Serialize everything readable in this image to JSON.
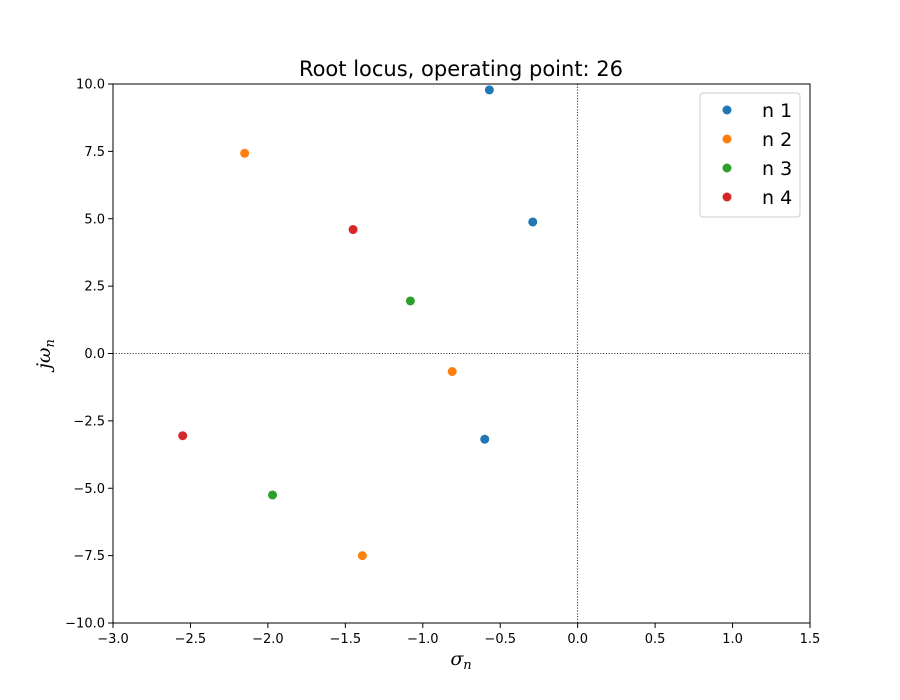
{
  "chart_data": {
    "type": "scatter",
    "title": "Root locus, operating point: 26",
    "xlabel": "σ",
    "xlabel_sub": "n",
    "ylabel": "jω",
    "ylabel_sub": "n",
    "xlim": [
      -3.0,
      1.5
    ],
    "ylim": [
      -10.0,
      10.0
    ],
    "xticks": [
      -3.0,
      -2.5,
      -2.0,
      -1.5,
      -1.0,
      -0.5,
      0.0,
      0.5,
      1.0,
      1.5
    ],
    "xtick_labels": [
      "−3.0",
      "−2.5",
      "−2.0",
      "−1.5",
      "−1.0",
      "−0.5",
      "0.0",
      "0.5",
      "1.0",
      "1.5"
    ],
    "yticks": [
      -10.0,
      -7.5,
      -5.0,
      -2.5,
      0.0,
      2.5,
      5.0,
      7.5,
      10.0
    ],
    "ytick_labels": [
      "−10.0",
      "−7.5",
      "−5.0",
      "−2.5",
      "0.0",
      "2.5",
      "5.0",
      "7.5",
      "10.0"
    ],
    "grid": false,
    "reference_lines": {
      "x": 0.0,
      "y": 0.0,
      "style": "dotted"
    },
    "legend_position": "top-right",
    "series": [
      {
        "name": "n 1",
        "color": "#1f77b4",
        "points": [
          [
            -0.57,
            9.78
          ],
          [
            -0.29,
            4.88
          ],
          [
            -0.6,
            -3.18
          ]
        ]
      },
      {
        "name": "n 2",
        "color": "#ff7f0e",
        "points": [
          [
            -2.15,
            7.43
          ],
          [
            -0.81,
            -0.67
          ],
          [
            -1.39,
            -7.5
          ]
        ]
      },
      {
        "name": "n 3",
        "color": "#2ca02c",
        "points": [
          [
            -1.08,
            1.95
          ],
          [
            -1.97,
            -5.25
          ]
        ]
      },
      {
        "name": "n 4",
        "color": "#d62728",
        "points": [
          [
            -1.45,
            4.6
          ],
          [
            -2.55,
            -3.05
          ]
        ]
      }
    ]
  }
}
